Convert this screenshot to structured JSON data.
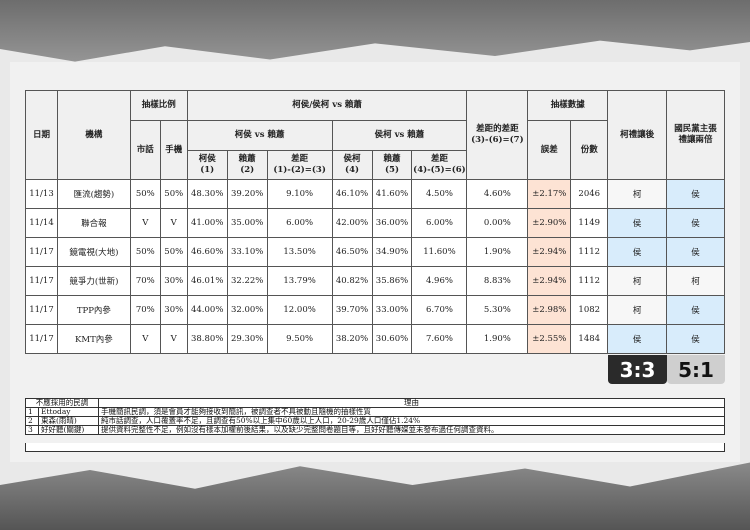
{
  "headers": {
    "date": "日期",
    "org": "機構",
    "ratio": "抽樣比例",
    "landline": "市話",
    "mobile": "手機",
    "group": "柯侯/侯柯 vs 賴蕭",
    "kh": "柯侯 vs 賴蕭",
    "hk": "侯柯 vs 賴蕭",
    "c1": "柯侯",
    "c1n": "(1)",
    "c2": "賴蕭",
    "c2n": "(2)",
    "c3": "差距",
    "c3n": "(1)-(2)=(3)",
    "c4": "侯柯",
    "c4n": "(4)",
    "c5": "賴蕭",
    "c5n": "(5)",
    "c6": "差距",
    "c6n": "(4)-(5)=(6)",
    "c7": "差距的差距",
    "c7n": "(3)-(6)=(7)",
    "sample": "抽樣數據",
    "err": "誤差",
    "count": "份數",
    "ke_yield": "柯禮讓後",
    "kmt1": "國民黨主張",
    "kmt2": "禮讓兩倍"
  },
  "rows": [
    [
      "11/13",
      "匯流(趨勢)",
      "50%",
      "50%",
      "48.30%",
      "39.20%",
      "9.10%",
      "46.10%",
      "41.60%",
      "4.50%",
      "4.60%",
      "±2.17%",
      "2046",
      "柯",
      "侯"
    ],
    [
      "11/14",
      "聯合報",
      "V",
      "V",
      "41.00%",
      "35.00%",
      "6.00%",
      "42.00%",
      "36.00%",
      "6.00%",
      "0.00%",
      "±2.90%",
      "1149",
      "侯",
      "侯"
    ],
    [
      "11/17",
      "鏡電視(大地)",
      "50%",
      "50%",
      "46.60%",
      "33.10%",
      "13.50%",
      "46.50%",
      "34.90%",
      "11.60%",
      "1.90%",
      "±2.94%",
      "1112",
      "侯",
      "侯"
    ],
    [
      "11/17",
      "競爭力(世新)",
      "70%",
      "30%",
      "46.01%",
      "32.22%",
      "13.79%",
      "40.82%",
      "35.86%",
      "4.96%",
      "8.83%",
      "±2.94%",
      "1112",
      "柯",
      "柯"
    ],
    [
      "11/17",
      "TPP內參",
      "70%",
      "30%",
      "44.00%",
      "32.00%",
      "12.00%",
      "39.70%",
      "33.00%",
      "6.70%",
      "5.30%",
      "±2.98%",
      "1082",
      "柯",
      "侯"
    ],
    [
      "11/17",
      "KMT內參",
      "V",
      "V",
      "38.80%",
      "29.30%",
      "9.50%",
      "38.20%",
      "30.60%",
      "7.60%",
      "1.90%",
      "±2.55%",
      "1484",
      "侯",
      "侯"
    ]
  ],
  "tally": {
    "ke_yield": "3:3",
    "kmt": "5:1"
  },
  "excluded": {
    "header_polls": "不應採用的民調",
    "header_reason": "理由",
    "items": [
      {
        "n": "1",
        "name": "Ettoday",
        "reason": "手機簡訊民調，須是會員才能夠接收到簡訊，被調查者不具被動且隨機的抽樣性質"
      },
      {
        "n": "2",
        "name": "東森(雨晴)",
        "reason": "純市話調查，人口覆蓋率不足，且調查有50%以上集中60歲以上人口，20-29歲人口僅佔1.24%"
      },
      {
        "n": "3",
        "name": "好好聽(關鍵)",
        "reason": "提供資料完整性不足，例如沒有樣本加權前後結果，以及缺少完整問卷題目等，且好好聽傳媒並未發布過任何調查資料。"
      }
    ]
  },
  "colors": {
    "error_bg": "#fde3d4",
    "hou_bg": "#d8ecfb",
    "badge_dark": "#2a2a2a",
    "badge_light": "#cfcfcf"
  }
}
